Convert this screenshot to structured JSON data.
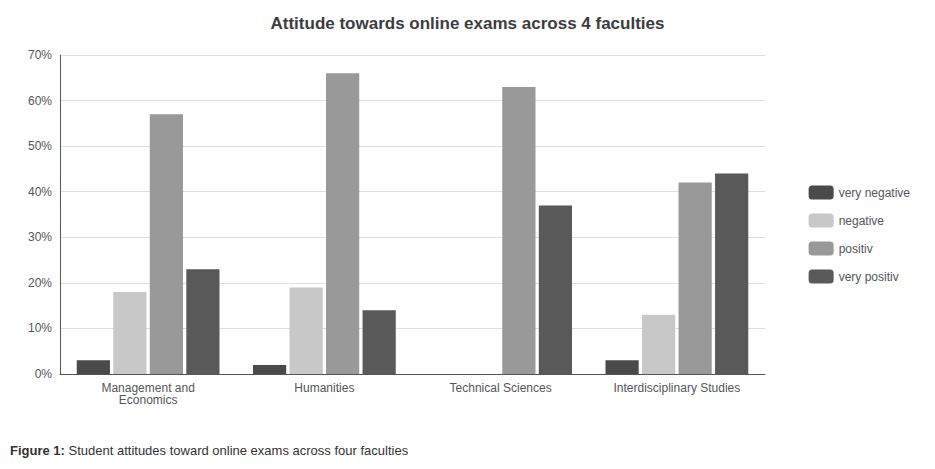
{
  "chart_data": {
    "type": "bar",
    "title": "Attitude towards online exams across 4 faculties",
    "categories": [
      "Management and\nEconomics",
      "Humanities",
      "Technical Sciences",
      "Interdisciplinary Studies"
    ],
    "series": [
      {
        "name": "very negative",
        "color": "#4a4a4a",
        "values": [
          3,
          2,
          0,
          3
        ]
      },
      {
        "name": "negative",
        "color": "#c8c8c8",
        "values": [
          18,
          19,
          0,
          13
        ]
      },
      {
        "name": "positiv",
        "color": "#999999",
        "values": [
          57,
          66,
          63,
          42
        ]
      },
      {
        "name": "very positiv",
        "color": "#595959",
        "values": [
          23,
          14,
          37,
          44
        ]
      }
    ],
    "ylim": [
      0,
      70
    ],
    "yticks": [
      {
        "value": 0,
        "label": "0%"
      },
      {
        "value": 10,
        "label": "10%"
      },
      {
        "value": 20,
        "label": "20%"
      },
      {
        "value": 30,
        "label": "30%"
      },
      {
        "value": 40,
        "label": "40%"
      },
      {
        "value": 50,
        "label": "50%"
      },
      {
        "value": 60,
        "label": "60%"
      },
      {
        "value": 70,
        "label": "70%"
      }
    ],
    "grid": true,
    "legend": "right",
    "annotations": [
      "Figure 1:",
      "Student attitudes toward online exams across four faculties"
    ]
  }
}
